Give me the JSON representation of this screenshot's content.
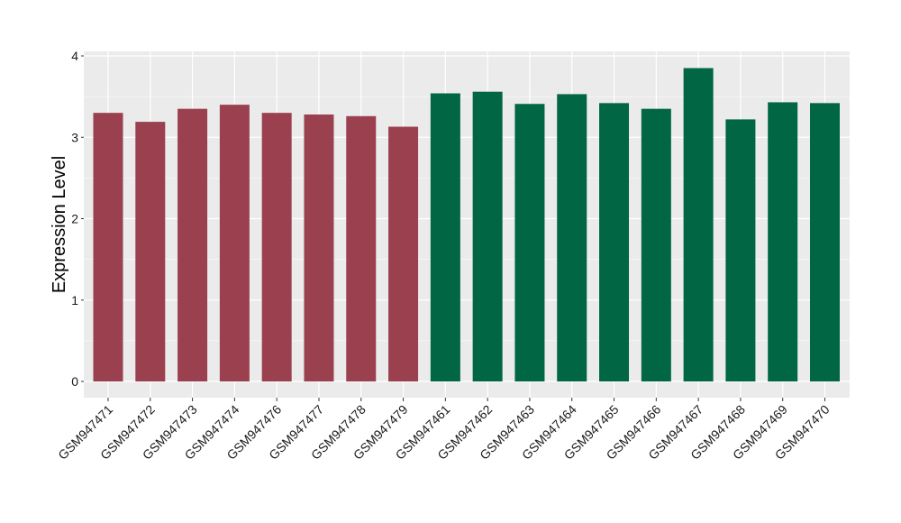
{
  "chart_data": {
    "type": "bar",
    "title": "",
    "xlabel": "",
    "ylabel": "Expression Level",
    "ylim": [
      0,
      4
    ],
    "yticks": [
      0,
      1,
      2,
      3,
      4
    ],
    "grid": true,
    "legend": "none",
    "colors": {
      "panel_bg": "#ebebeb",
      "grid": "#ffffff",
      "group_a": "#9a404f",
      "group_b": "#006644"
    },
    "categories": [
      "GSM947471",
      "GSM947472",
      "GSM947473",
      "GSM947474",
      "GSM947476",
      "GSM947477",
      "GSM947478",
      "GSM947479",
      "GSM947461",
      "GSM947462",
      "GSM947463",
      "GSM947464",
      "GSM947465",
      "GSM947466",
      "GSM947467",
      "GSM947468",
      "GSM947469",
      "GSM947470"
    ],
    "values": [
      3.3,
      3.19,
      3.35,
      3.4,
      3.3,
      3.28,
      3.26,
      3.13,
      3.54,
      3.56,
      3.41,
      3.53,
      3.42,
      3.35,
      3.85,
      3.22,
      3.43,
      3.42
    ],
    "bar_colors": [
      "#9a404f",
      "#9a404f",
      "#9a404f",
      "#9a404f",
      "#9a404f",
      "#9a404f",
      "#9a404f",
      "#9a404f",
      "#006644",
      "#006644",
      "#006644",
      "#006644",
      "#006644",
      "#006644",
      "#006644",
      "#006644",
      "#006644",
      "#006644"
    ]
  }
}
